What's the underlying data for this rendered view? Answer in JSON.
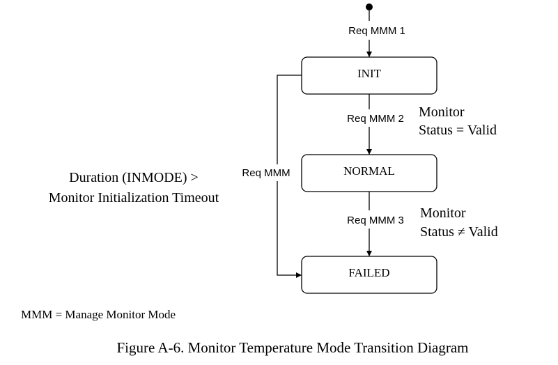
{
  "states": {
    "init": "INIT",
    "normal": "NORMAL",
    "failed": "FAILED"
  },
  "transitions": {
    "start_label": "Req MMM 1",
    "init_to_normal": "Req MMM 2",
    "normal_to_failed": "Req MMM 3",
    "init_to_failed": "Req MMM"
  },
  "conditions": {
    "normal_line1": "Monitor",
    "normal_line2": "Status = Valid",
    "failed_line1": "Monitor",
    "failed_line2": "Status ≠ Valid",
    "timeout_line1": "Duration (INMODE) >",
    "timeout_line2": "Monitor Initialization Timeout"
  },
  "legend": "MMM = Manage Monitor Mode",
  "caption": "Figure A-6.  Monitor Temperature Mode Transition Diagram"
}
